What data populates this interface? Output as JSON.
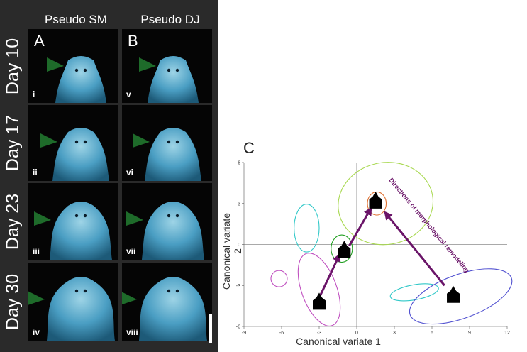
{
  "panel_left": {
    "columns": [
      "Pseudo SM",
      "Pseudo DJ"
    ],
    "panel_letters": [
      "A",
      "B"
    ],
    "rows": [
      {
        "label": "Day 10",
        "tiles": [
          "i",
          "v"
        ]
      },
      {
        "label": "Day 17",
        "tiles": [
          "ii",
          "vi"
        ]
      },
      {
        "label": "Day 23",
        "tiles": [
          "iii",
          "vii"
        ]
      },
      {
        "label": "Day 30",
        "tiles": [
          "iv",
          "viii"
        ]
      }
    ],
    "arrowhead_color": "#1e6b2a",
    "tissue_color": "#4a9ec3"
  },
  "panel_c": {
    "letter": "C",
    "annotation": "Directions of morphological remodeling",
    "arrow_color": "#6a1468"
  },
  "chart_data": {
    "type": "scatter",
    "xlabel": "Canonical variate 1",
    "ylabel": "Canonical variate 2",
    "xlim": [
      -9,
      12
    ],
    "ylim": [
      -6,
      6
    ],
    "xticks": [
      -9,
      -6,
      -3,
      0,
      3,
      6,
      9,
      12
    ],
    "yticks": [
      -6,
      -3,
      0,
      3,
      6
    ],
    "grid": false,
    "points": [
      {
        "x": -3.0,
        "y": -4.2
      },
      {
        "x": -1.0,
        "y": -0.4
      },
      {
        "x": 1.5,
        "y": 3.2
      },
      {
        "x": 7.7,
        "y": -3.7
      }
    ],
    "ellipses": [
      {
        "cx": -3.0,
        "cy": -3.3,
        "rx": 1.4,
        "ry": 2.8,
        "angle": -20,
        "color": "#c050c0"
      },
      {
        "cx": -6.2,
        "cy": -2.5,
        "rx": 0.65,
        "ry": 0.6,
        "angle": 0,
        "color": "#c050c0"
      },
      {
        "cx": -1.2,
        "cy": -0.3,
        "rx": 0.85,
        "ry": 1.0,
        "angle": 0,
        "color": "#22a022"
      },
      {
        "cx": -4.0,
        "cy": 1.2,
        "rx": 1.0,
        "ry": 1.75,
        "angle": 0,
        "color": "#30c8c8"
      },
      {
        "cx": 2.3,
        "cy": 3.0,
        "rx": 3.8,
        "ry": 3.0,
        "angle": -10,
        "color": "#a8d850"
      },
      {
        "cx": 1.6,
        "cy": 3.0,
        "rx": 0.75,
        "ry": 0.85,
        "angle": 0,
        "color": "#e07030"
      },
      {
        "cx": 4.6,
        "cy": -3.5,
        "rx": 1.95,
        "ry": 0.55,
        "angle": -10,
        "color": "#30c8c8"
      },
      {
        "cx": 8.3,
        "cy": -3.8,
        "rx": 4.3,
        "ry": 1.6,
        "angle": -20,
        "color": "#5050d0"
      }
    ],
    "arrows": [
      {
        "from": [
          -3.0,
          -3.9
        ],
        "to": [
          -1.4,
          -0.8
        ]
      },
      {
        "from": [
          -0.6,
          -0.1
        ],
        "to": [
          1.1,
          2.6
        ]
      },
      {
        "from": [
          7.0,
          -3.0
        ],
        "to": [
          2.3,
          2.3
        ]
      }
    ]
  }
}
